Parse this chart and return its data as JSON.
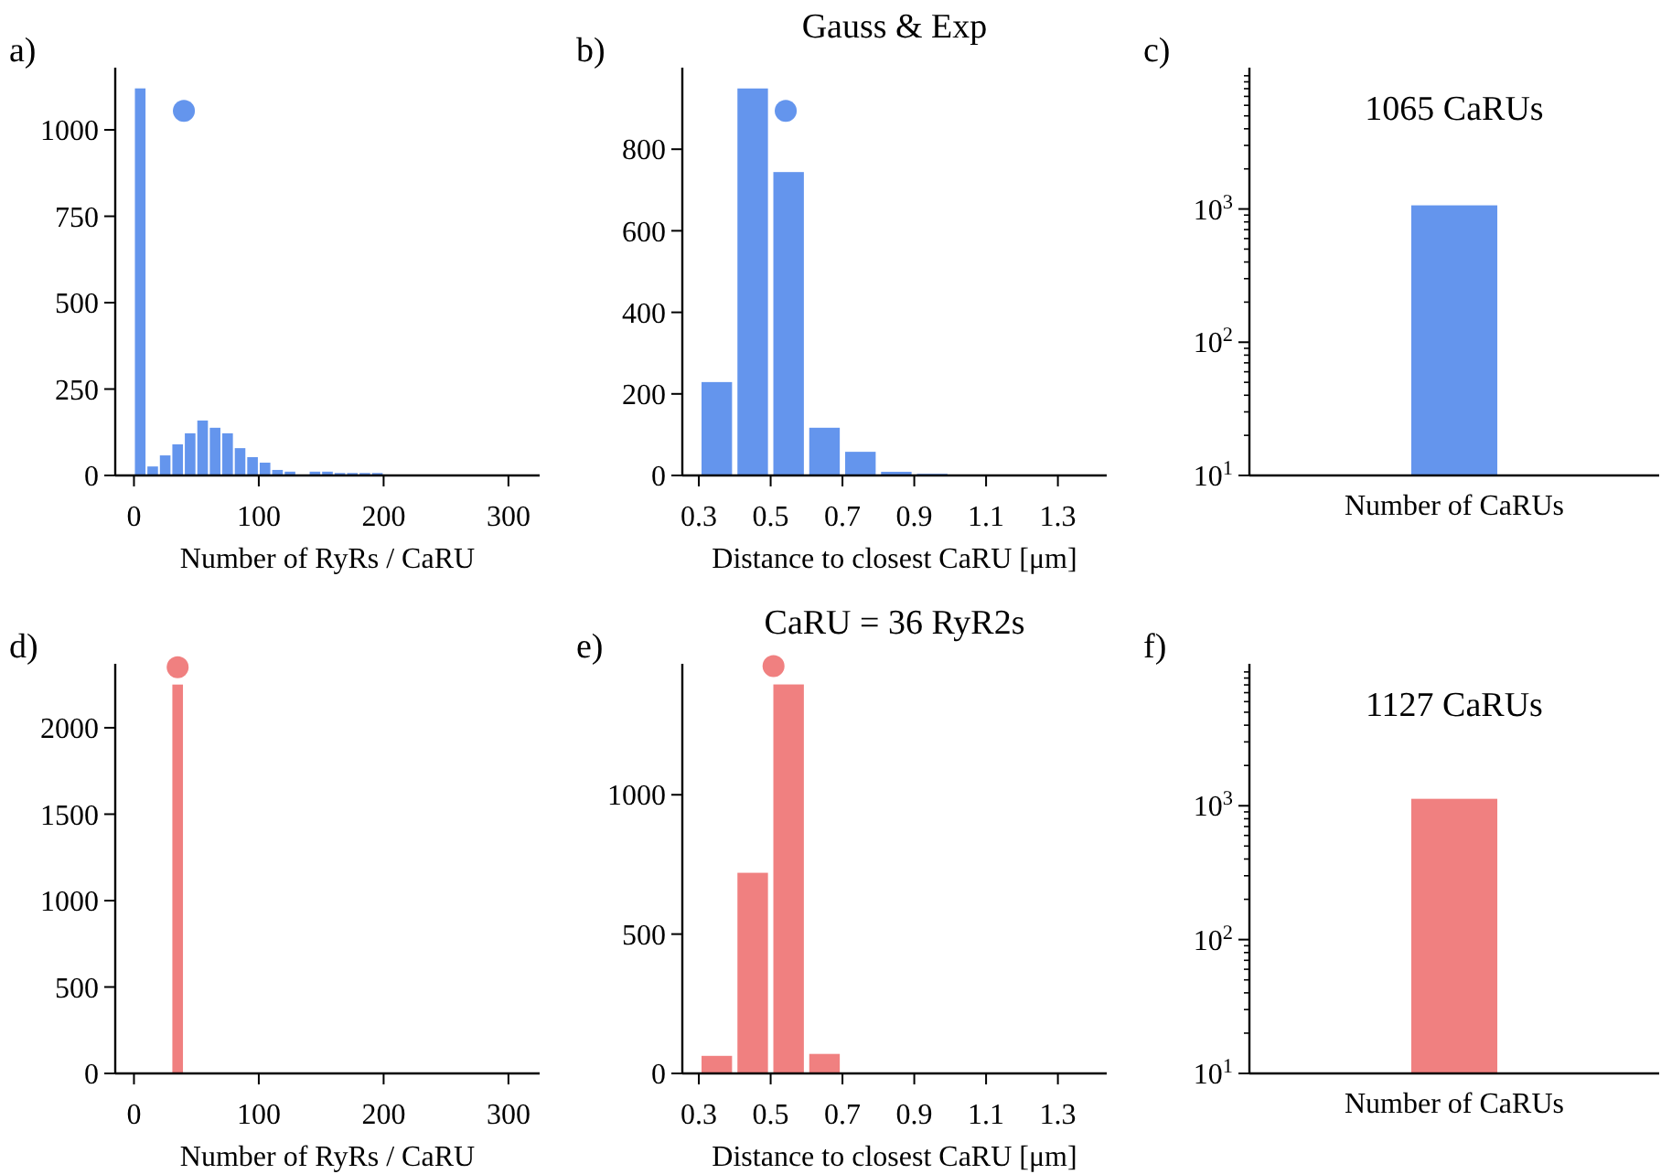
{
  "chart_data": [
    {
      "type": "histogram",
      "annotations": [
        "a)"
      ],
      "xlabel": "Number of RyRs / CaRU",
      "xlim": [
        -15,
        325
      ],
      "xticks": [
        0,
        100,
        200,
        300
      ],
      "ylim": [
        0,
        1180
      ],
      "yticks": [
        0,
        250,
        500,
        750,
        1000
      ],
      "series": [
        {
          "type": "histogram",
          "color": "#6495ed",
          "bins": [
            0,
            10,
            20,
            30,
            40,
            50,
            60,
            70,
            80,
            90,
            100,
            110,
            120,
            130,
            140,
            150,
            160,
            170,
            180,
            190,
            200
          ],
          "values": [
            1120,
            26,
            58,
            90,
            122,
            159,
            138,
            122,
            79,
            53,
            37,
            16,
            11,
            0,
            11,
            11,
            7,
            7,
            7,
            7
          ]
        },
        {
          "type": "scatter",
          "color": "#6495ed",
          "marker": "circle",
          "x": [
            40
          ],
          "values": [
            1055
          ]
        }
      ]
    },
    {
      "type": "histogram",
      "title": "Gauss & Exp",
      "annotations": [
        "b)"
      ],
      "xlabel": "Distance to closest CaRU [μm]",
      "xlim": [
        0.254,
        1.436
      ],
      "xticks": [
        0.3,
        0.5,
        0.7,
        0.9,
        1.1,
        1.3
      ],
      "ylim": [
        0,
        1000
      ],
      "yticks": [
        0,
        200,
        400,
        600,
        800
      ],
      "series": [
        {
          "type": "histogram",
          "color": "#6495ed",
          "bins": [
            0.3,
            0.4,
            0.5,
            0.6,
            0.7,
            0.8,
            0.9,
            1.0
          ],
          "values": [
            229,
            949,
            744,
            117,
            58,
            9,
            4
          ]
        },
        {
          "type": "scatter",
          "color": "#6495ed",
          "marker": "circle",
          "x": [
            0.542
          ],
          "values": [
            894
          ]
        }
      ]
    },
    {
      "type": "bar",
      "log": true,
      "annotations": [
        "c)",
        "1065 CaRUs"
      ],
      "categories": [
        "Number of CaRUs"
      ],
      "values": [
        1065
      ],
      "color": "#6495ed",
      "ylim": [
        10,
        11500
      ],
      "yticks": [
        {
          "value": 10,
          "label": "10$^{1}$"
        },
        {
          "value": 20,
          "label": null
        },
        {
          "value": 30,
          "label": null
        },
        {
          "value": 40,
          "label": null
        },
        {
          "value": 50,
          "label": null
        },
        {
          "value": 60,
          "label": null
        },
        {
          "value": 70,
          "label": null
        },
        {
          "value": 80,
          "label": null
        },
        {
          "value": 90,
          "label": null
        },
        {
          "value": 100,
          "label": "10$^{2}$"
        },
        {
          "value": 200,
          "label": null
        },
        {
          "value": 300,
          "label": null
        },
        {
          "value": 400,
          "label": null
        },
        {
          "value": 500,
          "label": null
        },
        {
          "value": 600,
          "label": null
        },
        {
          "value": 700,
          "label": null
        },
        {
          "value": 800,
          "label": null
        },
        {
          "value": 900,
          "label": null
        },
        {
          "value": 1000,
          "label": "10$^{3}$"
        },
        {
          "value": 2000,
          "label": null
        },
        {
          "value": 3000,
          "label": null
        },
        {
          "value": 4000,
          "label": null
        },
        {
          "value": 5000,
          "label": null
        },
        {
          "value": 6000,
          "label": null
        },
        {
          "value": 7000,
          "label": null
        },
        {
          "value": 8000,
          "label": null
        },
        {
          "value": 9000,
          "label": null
        },
        {
          "value": 10000,
          "label": null
        }
      ]
    },
    {
      "type": "histogram",
      "annotations": [
        "d)"
      ],
      "xlabel": "Number of RyRs / CaRU",
      "xlim": [
        -15,
        325
      ],
      "xticks": [
        0,
        100,
        200,
        300
      ],
      "ylim": [
        0,
        2370
      ],
      "yticks": [
        0,
        500,
        1000,
        1500,
        2000
      ],
      "series": [
        {
          "type": "histogram",
          "color": "#f08080",
          "bins": [
            30,
            40
          ],
          "values": [
            2250
          ]
        },
        {
          "type": "scatter",
          "color": "#f08080",
          "marker": "circle",
          "x": [
            35
          ],
          "values": [
            2350
          ]
        }
      ]
    },
    {
      "type": "histogram",
      "title": "CaRU = 36 RyR2s",
      "annotations": [
        "e)"
      ],
      "xlabel": "Distance to closest CaRU [μm]",
      "xlim": [
        0.254,
        1.436
      ],
      "xticks": [
        0.3,
        0.5,
        0.7,
        0.9,
        1.1,
        1.3
      ],
      "ylim": [
        0,
        1470
      ],
      "yticks": [
        0,
        500,
        1000
      ],
      "series": [
        {
          "type": "histogram",
          "color": "#f08080",
          "bins": [
            0.3,
            0.4,
            0.5,
            0.6,
            0.7
          ],
          "values": [
            63,
            720,
            1396,
            70
          ]
        },
        {
          "type": "scatter",
          "color": "#f08080",
          "marker": "circle",
          "x": [
            0.508
          ],
          "values": [
            1462
          ]
        }
      ]
    },
    {
      "type": "bar",
      "log": true,
      "annotations": [
        "f)",
        "1127 CaRUs"
      ],
      "categories": [
        "Number of CaRUs"
      ],
      "values": [
        1127
      ],
      "color": "#f08080",
      "ylim": [
        10,
        11500
      ],
      "yticks": [
        {
          "value": 10,
          "label": "10$^{1}$"
        },
        {
          "value": 20,
          "label": null
        },
        {
          "value": 30,
          "label": null
        },
        {
          "value": 40,
          "label": null
        },
        {
          "value": 50,
          "label": null
        },
        {
          "value": 60,
          "label": null
        },
        {
          "value": 70,
          "label": null
        },
        {
          "value": 80,
          "label": null
        },
        {
          "value": 90,
          "label": null
        },
        {
          "value": 100,
          "label": "10$^{2}$"
        },
        {
          "value": 200,
          "label": null
        },
        {
          "value": 300,
          "label": null
        },
        {
          "value": 400,
          "label": null
        },
        {
          "value": 500,
          "label": null
        },
        {
          "value": 600,
          "label": null
        },
        {
          "value": 700,
          "label": null
        },
        {
          "value": 800,
          "label": null
        },
        {
          "value": 900,
          "label": null
        },
        {
          "value": 1000,
          "label": "10$^{3}$"
        },
        {
          "value": 2000,
          "label": null
        },
        {
          "value": 3000,
          "label": null
        },
        {
          "value": 4000,
          "label": null
        },
        {
          "value": 5000,
          "label": null
        },
        {
          "value": 6000,
          "label": null
        },
        {
          "value": 7000,
          "label": null
        },
        {
          "value": 8000,
          "label": null
        },
        {
          "value": 9000,
          "label": null
        },
        {
          "value": 10000,
          "label": null
        }
      ]
    }
  ]
}
